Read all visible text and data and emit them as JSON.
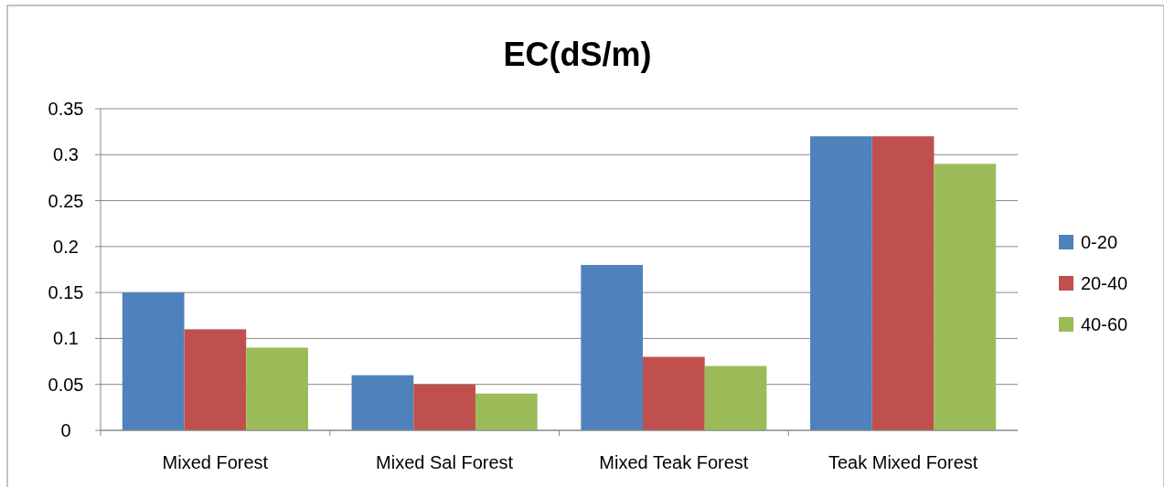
{
  "chart_data": {
    "type": "bar",
    "title": "EC(dS/m)",
    "categories": [
      "Mixed Forest",
      "Mixed Sal Forest",
      "Mixed Teak Forest",
      "Teak Mixed Forest"
    ],
    "series": [
      {
        "name": "0-20",
        "color": "#4f81bd",
        "values": [
          0.15,
          0.06,
          0.18,
          0.32
        ]
      },
      {
        "name": "20-40",
        "color": "#c0504d",
        "values": [
          0.11,
          0.05,
          0.08,
          0.32
        ]
      },
      {
        "name": "40-60",
        "color": "#9bbb59",
        "values": [
          0.09,
          0.04,
          0.07,
          0.29
        ]
      }
    ],
    "ylim": [
      0,
      0.35
    ],
    "yticks": [
      0,
      0.05,
      0.1,
      0.15,
      0.2,
      0.25,
      0.3,
      0.35
    ],
    "grid": "y",
    "legend": "right"
  }
}
